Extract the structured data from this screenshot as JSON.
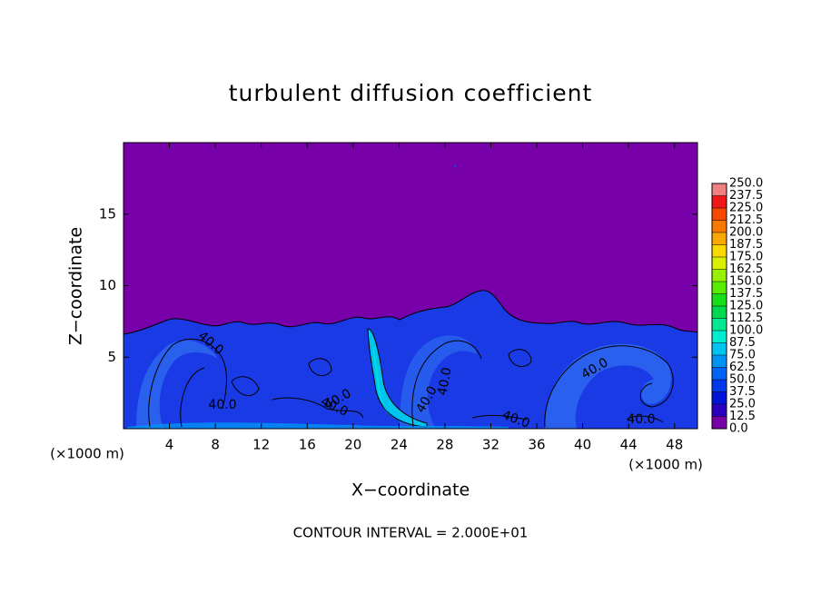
{
  "chart_data": {
    "type": "contour",
    "title": "turbulent diffusion coefficient",
    "x_label": "X−coordinate",
    "y_label": "Z−coordinate",
    "x_unit_label": "(×1000 m)",
    "footer": "CONTOUR INTERVAL = 2.000E+01",
    "xlim": [
      0,
      50
    ],
    "ylim": [
      0,
      20
    ],
    "xticks": [
      4,
      8,
      12,
      16,
      20,
      24,
      28,
      32,
      36,
      40,
      44,
      48
    ],
    "yticks": [
      5,
      10,
      15
    ],
    "contour_labels": [
      {
        "value": 40,
        "label": "40.0"
      },
      {
        "value": 40,
        "label": "40.0"
      },
      {
        "value": 40,
        "label": "40.0"
      },
      {
        "value": 40,
        "label": "40.0"
      },
      {
        "value": 40,
        "label": "40.0"
      },
      {
        "value": 40,
        "label": "40.0"
      },
      {
        "value": 40,
        "label": "40.0"
      },
      {
        "value": 40,
        "label": "40.0"
      },
      {
        "value": 40,
        "label": "40.0"
      }
    ],
    "colorbar": {
      "levels": [
        {
          "value": 0,
          "label": "0.0"
        },
        12.5,
        {
          "value": 25,
          "label": "25.0"
        },
        37.5,
        {
          "value": 50,
          "label": "50.0"
        },
        62.5,
        {
          "value": 75,
          "label": "75.0"
        },
        87.5,
        {
          "value": 100,
          "label": "100.0"
        },
        112.5,
        {
          "value": 125,
          "label": "125.0"
        },
        137.5,
        {
          "value": 150,
          "label": "150.0"
        },
        162.5,
        {
          "value": 175,
          "label": "175.0"
        },
        187.5,
        {
          "value": 200,
          "label": "200.0"
        },
        212.5,
        {
          "value": 225,
          "label": "225.0"
        },
        237.5,
        {
          "value": 250,
          "label": "250.0"
        }
      ],
      "colors": [
        "#7800a8",
        "#2a00c0",
        "#0014d8",
        "#0038ec",
        "#0064f8",
        "#0094f8",
        "#00c4f0",
        "#00ecd0",
        "#00e890",
        "#00d850",
        "#18e018",
        "#58ec00",
        "#98f000",
        "#d8f000",
        "#f8d800",
        "#f8a800",
        "#f87800",
        "#f84800",
        "#f01818",
        "#f08080"
      ]
    }
  }
}
